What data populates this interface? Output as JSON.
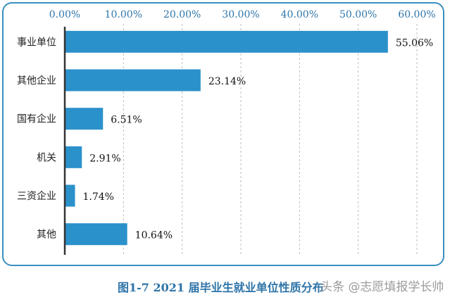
{
  "chart_data": {
    "type": "bar",
    "orientation": "horizontal",
    "categories": [
      "事业单位",
      "其他企业",
      "国有企业",
      "机关",
      "三资企业",
      "其他"
    ],
    "values": [
      55.06,
      23.14,
      6.51,
      2.91,
      1.74,
      10.64
    ],
    "data_labels": [
      "55.06%",
      "23.14%",
      "6.51%",
      "2.91%",
      "1.74%",
      "10.64%"
    ],
    "xlim": [
      0,
      60
    ],
    "x_ticks": [
      "0.00%",
      "10.00%",
      "20.00%",
      "30.00%",
      "40.00%",
      "50.00%",
      "60.00%"
    ],
    "x_axis_position": "top",
    "grid": "vertical dashed",
    "legend": "none",
    "bar_color": "#2b91cb",
    "caption": "图1-7   2021 届毕业生就业单位性质分布"
  },
  "watermark": "头条 @志愿填报学长帅"
}
